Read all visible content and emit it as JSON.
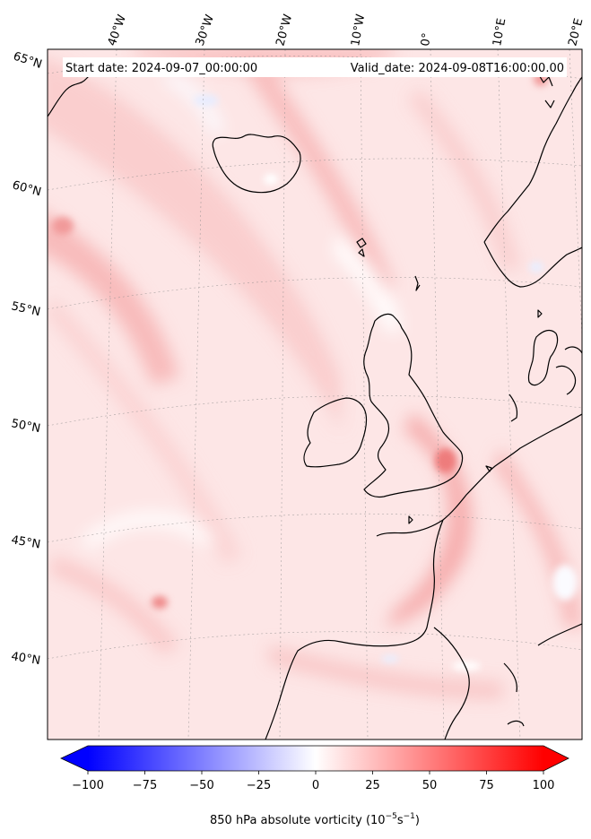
{
  "header": {
    "start_date": "Start date: 2024-09-07_00:00:00",
    "valid_date": "Valid_date: 2024-09-08T16:00:00.00"
  },
  "map": {
    "projection": "lambert-conformal",
    "variable": "850 hPa absolute vorticity",
    "lon_labels": [
      "40°W",
      "30°W",
      "20°W",
      "10°W",
      "0°",
      "10°E",
      "20°E"
    ],
    "lat_labels": [
      "65°N",
      "60°N",
      "55°N",
      "50°N",
      "45°N",
      "40°N"
    ],
    "icons": [
      "coastline",
      "graticule",
      "vorticity-field"
    ]
  },
  "colorbar": {
    "ticks": [
      "−100",
      "−75",
      "−50",
      "−25",
      "0",
      "25",
      "50",
      "75",
      "100"
    ],
    "tick_values": [
      -100,
      -75,
      -50,
      -25,
      0,
      25,
      50,
      75,
      100
    ],
    "range": [
      -100,
      100
    ],
    "extend": "both",
    "label": "850 hPa absolute vorticity (10",
    "label_exp1": "−5",
    "label_mid": "s",
    "label_exp2": "−1",
    "label_end": ")",
    "colors": {
      "min": "#0000ff",
      "mid": "#ffffff",
      "max": "#ff0000"
    }
  }
}
